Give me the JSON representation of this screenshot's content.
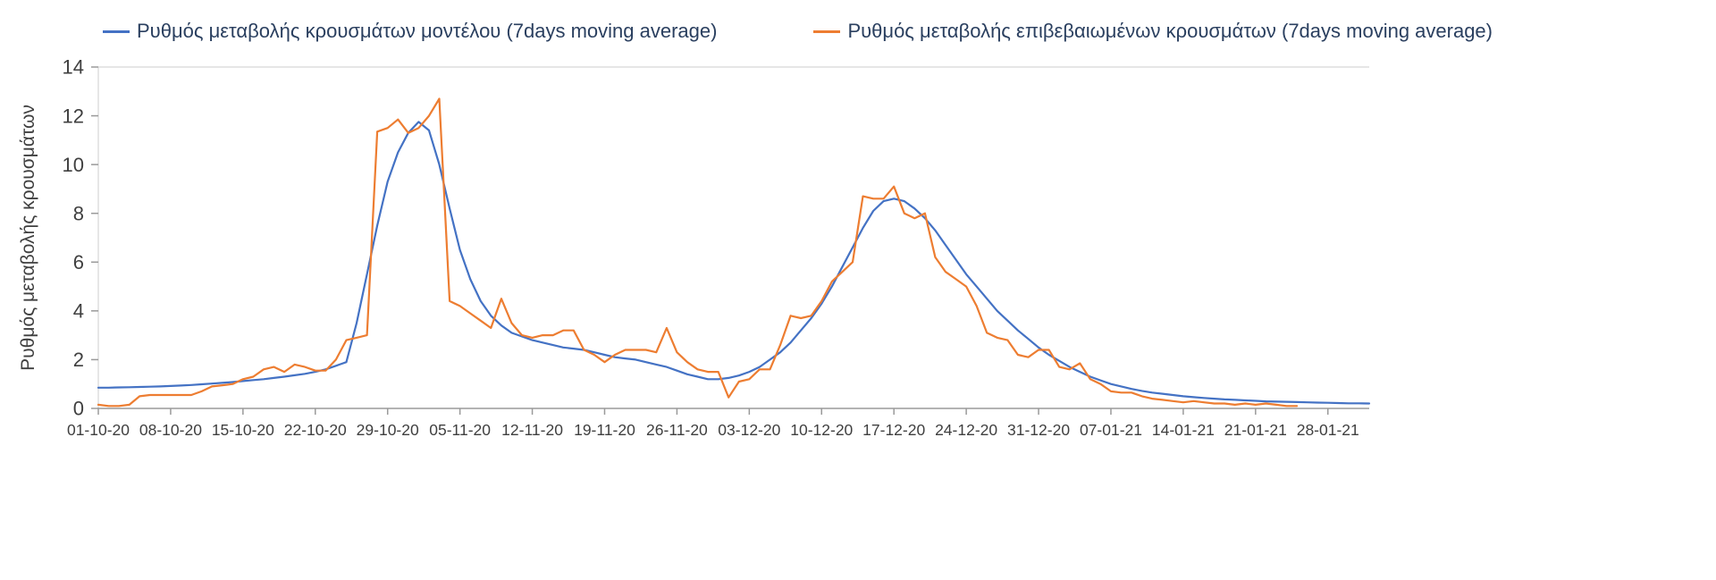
{
  "legend": {
    "model_label": "Ρυθμός μεταβολής κρουσμάτων μοντέλου (7days moving average)",
    "confirmed_label": "Ρυθμός μεταβολής επιβεβαιωμένων κρουσμάτων (7days moving average)"
  },
  "colors": {
    "model_line": "#4472C4",
    "confirmed_line": "#ED7D31",
    "text": "#2a3f5f",
    "tick_text": "#3f3f3f",
    "axis_line": "#9a9a9a",
    "light_border": "#dedede"
  },
  "chart_data": {
    "type": "line",
    "title": "",
    "xlabel": "",
    "ylabel": "Ρυθμός μεταβολής κρουσμάτων",
    "ylim": [
      0,
      14
    ],
    "y_ticks": [
      0,
      2,
      4,
      6,
      8,
      10,
      12,
      14
    ],
    "grid": false,
    "legend_position": "top",
    "x_start_date": "01-10-20",
    "x_interval_days": 1,
    "x_total_days": 123,
    "x_tick_positions": [
      0,
      7,
      14,
      21,
      28,
      35,
      42,
      49,
      56,
      63,
      70,
      77,
      84,
      91,
      98,
      105,
      112,
      119
    ],
    "x_tick_labels": [
      "01-10-20",
      "08-10-20",
      "15-10-20",
      "22-10-20",
      "29-10-20",
      "05-11-20",
      "12-11-20",
      "19-11-20",
      "26-11-20",
      "03-12-20",
      "10-12-20",
      "17-12-20",
      "24-12-20",
      "31-12-20",
      "07-01-21",
      "14-01-21",
      "21-01-21",
      "28-01-21"
    ],
    "series": [
      {
        "name": "Ρυθμός μεταβολής κρουσμάτων μοντέλου (7days moving average)",
        "color": "#4472C4",
        "values": [
          0.85,
          0.85,
          0.86,
          0.87,
          0.88,
          0.89,
          0.9,
          0.92,
          0.94,
          0.96,
          0.99,
          1.02,
          1.05,
          1.08,
          1.12,
          1.16,
          1.2,
          1.25,
          1.3,
          1.36,
          1.42,
          1.5,
          1.6,
          1.75,
          1.9,
          3.5,
          5.5,
          7.5,
          9.3,
          10.5,
          11.3,
          11.75,
          11.4,
          10.0,
          8.2,
          6.5,
          5.3,
          4.4,
          3.8,
          3.4,
          3.1,
          2.95,
          2.8,
          2.7,
          2.6,
          2.5,
          2.45,
          2.4,
          2.3,
          2.2,
          2.1,
          2.05,
          2.0,
          1.9,
          1.8,
          1.7,
          1.55,
          1.4,
          1.3,
          1.2,
          1.2,
          1.25,
          1.35,
          1.5,
          1.7,
          2.0,
          2.3,
          2.7,
          3.2,
          3.7,
          4.3,
          5.0,
          5.8,
          6.6,
          7.4,
          8.1,
          8.5,
          8.6,
          8.5,
          8.2,
          7.8,
          7.3,
          6.7,
          6.1,
          5.5,
          5.0,
          4.5,
          4.0,
          3.6,
          3.2,
          2.85,
          2.5,
          2.2,
          1.95,
          1.7,
          1.5,
          1.3,
          1.15,
          1.0,
          0.9,
          0.8,
          0.72,
          0.65,
          0.6,
          0.55,
          0.5,
          0.46,
          0.43,
          0.4,
          0.37,
          0.35,
          0.33,
          0.31,
          0.29,
          0.28,
          0.27,
          0.26,
          0.25,
          0.24,
          0.23,
          0.22,
          0.21,
          0.21,
          0.2
        ]
      },
      {
        "name": "Ρυθμός μεταβολής επιβεβαιωμένων κρουσμάτων (7days moving average)",
        "color": "#ED7D31",
        "values": [
          0.15,
          0.1,
          0.1,
          0.15,
          0.5,
          0.55,
          0.55,
          0.55,
          0.55,
          0.55,
          0.7,
          0.9,
          0.95,
          1.0,
          1.2,
          1.3,
          1.6,
          1.7,
          1.5,
          1.8,
          1.7,
          1.55,
          1.55,
          2.0,
          2.8,
          2.9,
          3.0,
          11.35,
          11.5,
          11.85,
          11.3,
          11.5,
          12.0,
          12.7,
          4.4,
          4.2,
          3.9,
          3.6,
          3.3,
          4.5,
          3.5,
          3.0,
          2.9,
          3.0,
          3.0,
          3.2,
          3.2,
          2.4,
          2.2,
          1.9,
          2.2,
          2.4,
          2.4,
          2.4,
          2.3,
          3.3,
          2.3,
          1.9,
          1.6,
          1.5,
          1.5,
          0.45,
          1.1,
          1.2,
          1.6,
          1.6,
          2.6,
          3.8,
          3.7,
          3.8,
          4.4,
          5.2,
          5.6,
          6.0,
          8.7,
          8.6,
          8.6,
          9.1,
          8.0,
          7.8,
          8.0,
          6.2,
          5.6,
          5.3,
          5.0,
          4.2,
          3.1,
          2.9,
          2.8,
          2.2,
          2.1,
          2.4,
          2.4,
          1.7,
          1.6,
          1.85,
          1.2,
          1.0,
          0.7,
          0.65,
          0.65,
          0.5,
          0.4,
          0.35,
          0.3,
          0.25,
          0.3,
          0.25,
          0.2,
          0.2,
          0.15,
          0.2,
          0.15,
          0.2,
          0.15,
          0.1,
          0.1
        ]
      }
    ]
  }
}
